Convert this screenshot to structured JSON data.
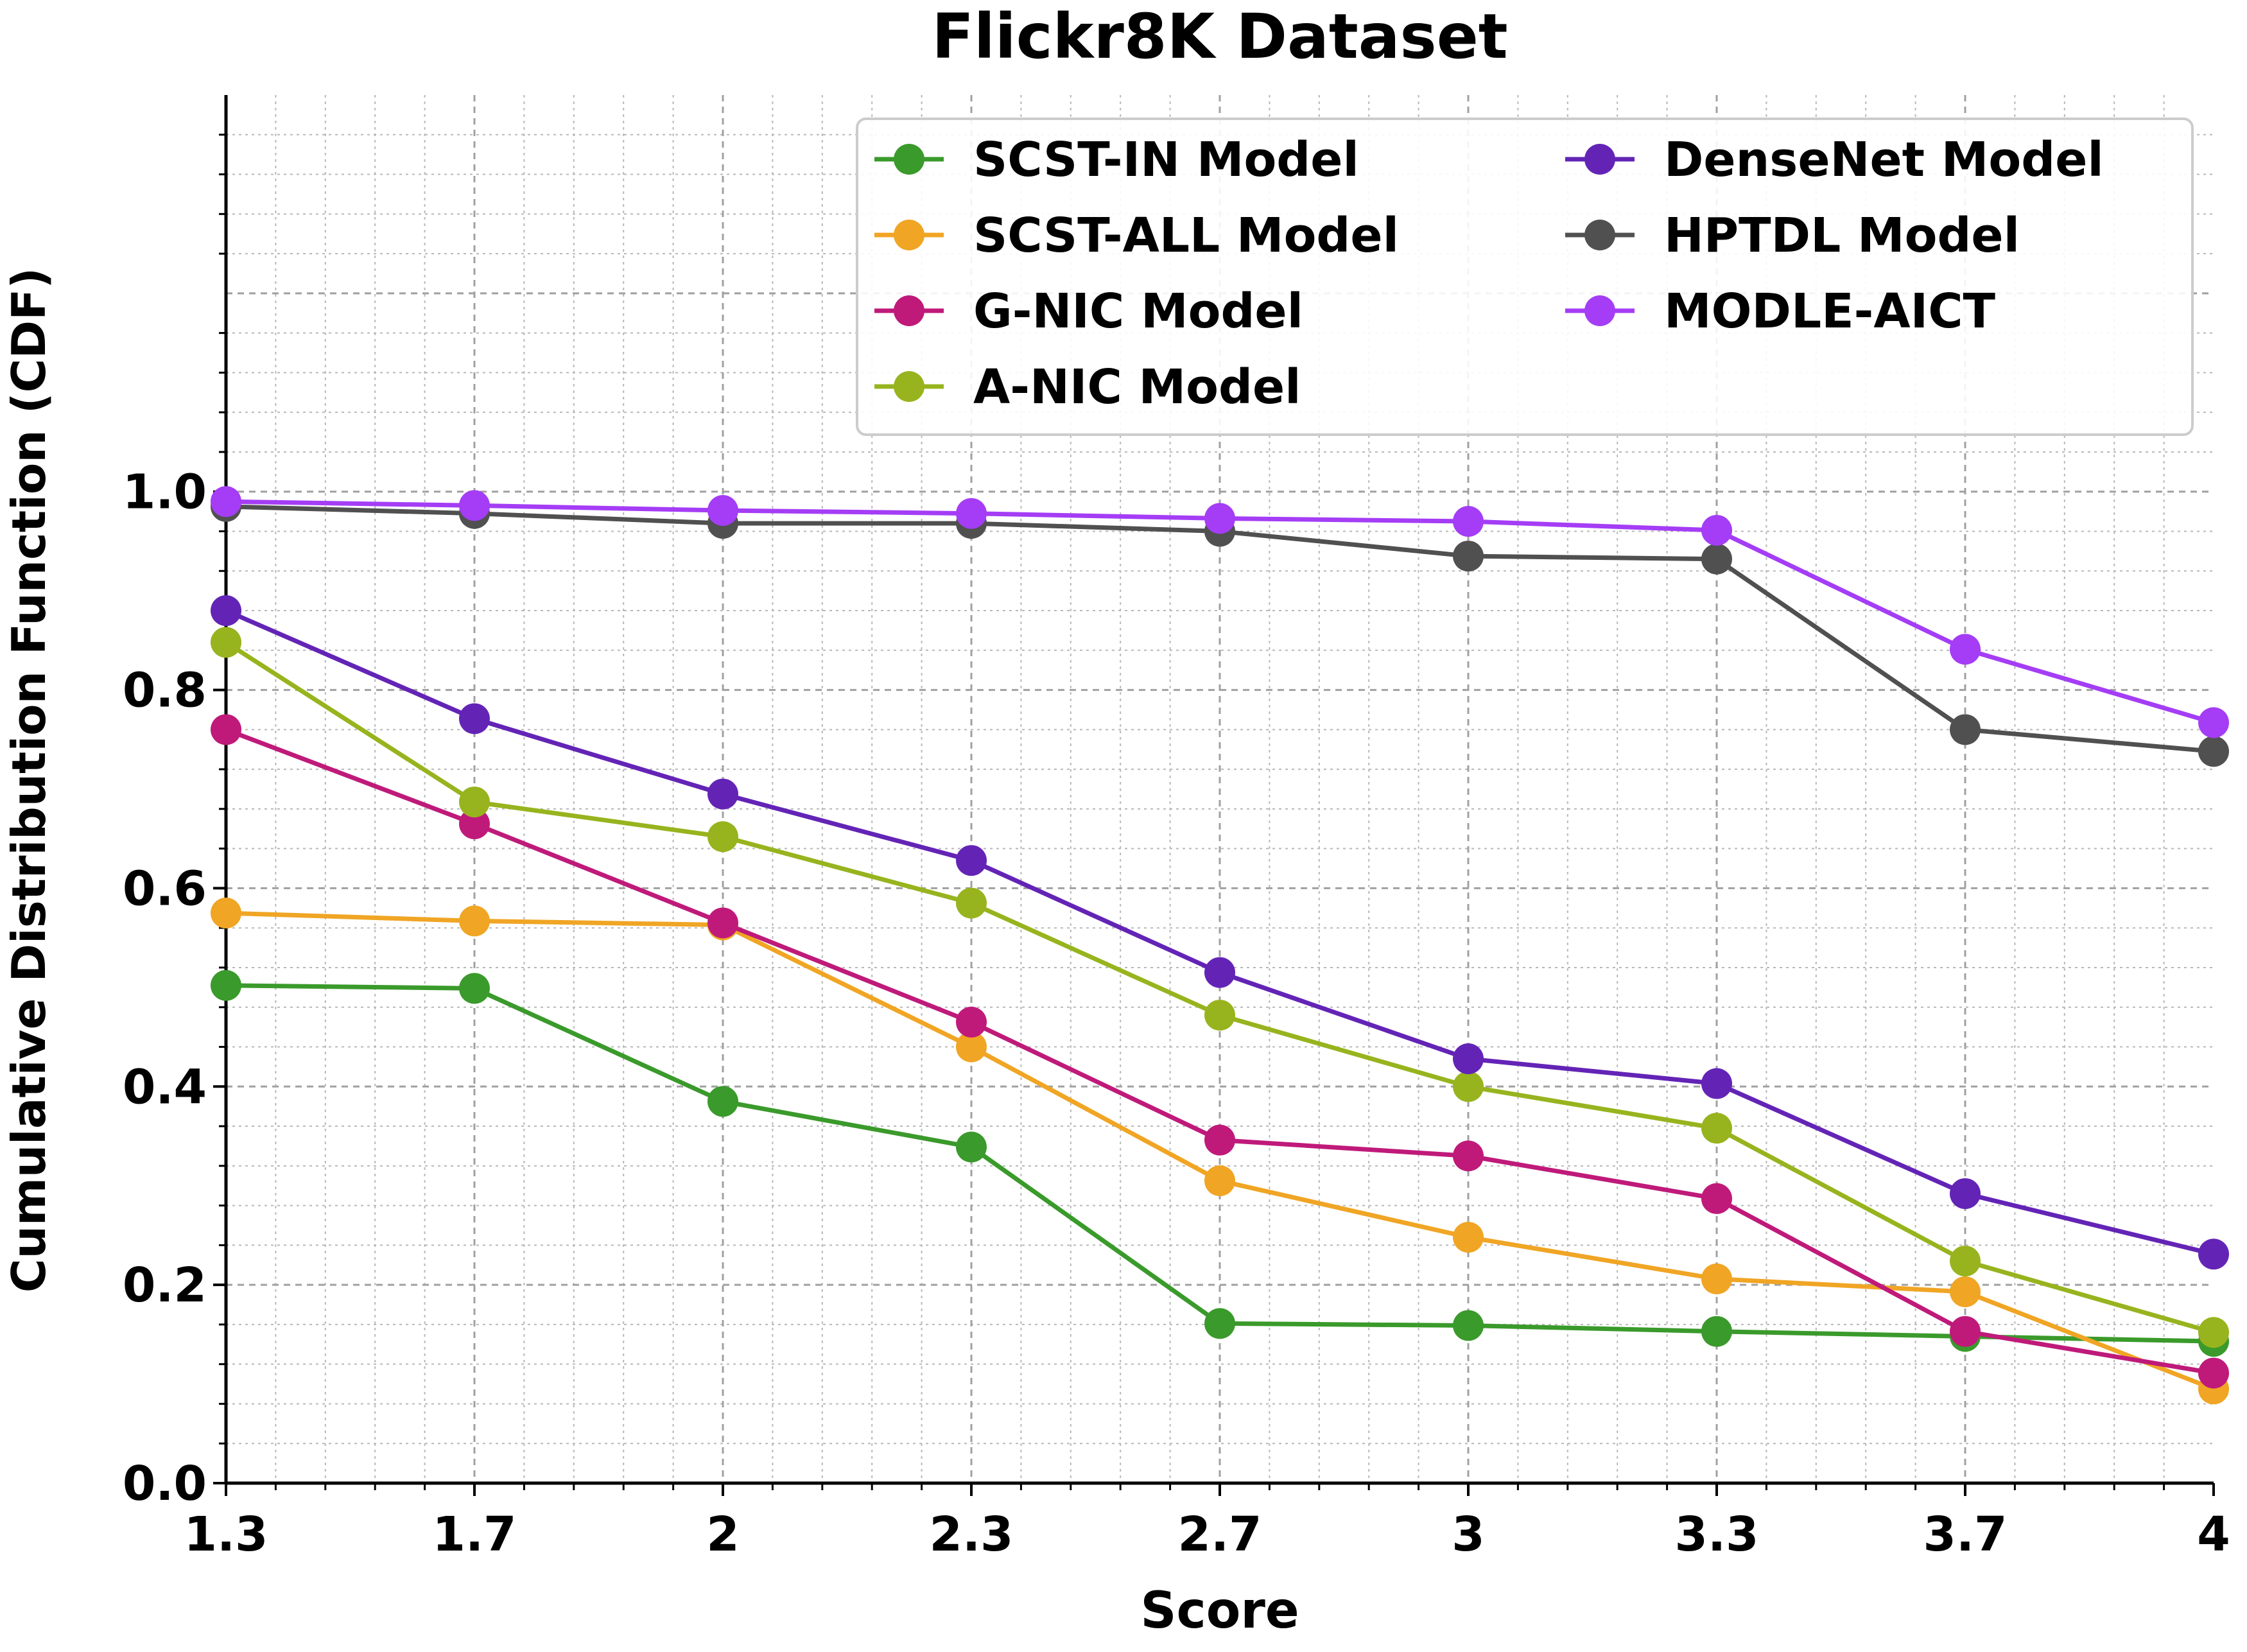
{
  "chart_data": {
    "type": "line",
    "title": "Flickr8K Dataset",
    "xlabel": "Score",
    "ylabel": "Cumulative Distribution Function (CDF)",
    "categories": [
      "1.3",
      "1.7",
      "2",
      "2.3",
      "2.7",
      "3",
      "3.3",
      "3.7",
      "4"
    ],
    "yticks": [
      "0.0",
      "0.2",
      "0.4",
      "0.6",
      "0.8",
      "1.0"
    ],
    "ylim": [
      0,
      1.4
    ],
    "grid": true,
    "legend_position": "top-right",
    "series": [
      {
        "name": "SCST-IN Model",
        "color": "#3a9a2b",
        "values": [
          0.502,
          0.499,
          0.385,
          0.339,
          0.161,
          0.159,
          0.153,
          0.148,
          0.143
        ]
      },
      {
        "name": "SCST-ALL Model",
        "color": "#f0a524",
        "values": [
          0.575,
          0.567,
          0.563,
          0.44,
          0.305,
          0.248,
          0.206,
          0.193,
          0.095
        ]
      },
      {
        "name": "G-NIC Model",
        "color": "#bf1a7a",
        "values": [
          0.76,
          0.665,
          0.565,
          0.465,
          0.346,
          0.33,
          0.287,
          0.153,
          0.111
        ]
      },
      {
        "name": "A-NIC Model",
        "color": "#97b41e",
        "values": [
          0.848,
          0.687,
          0.652,
          0.585,
          0.472,
          0.4,
          0.358,
          0.224,
          0.152
        ]
      },
      {
        "name": "DenseNet Model",
        "color": "#6324b6",
        "values": [
          0.88,
          0.771,
          0.695,
          0.628,
          0.515,
          0.428,
          0.403,
          0.292,
          0.231
        ]
      },
      {
        "name": "HPTDL Model",
        "color": "#505050",
        "values": [
          0.985,
          0.978,
          0.968,
          0.968,
          0.96,
          0.935,
          0.932,
          0.76,
          0.738
        ]
      },
      {
        "name": "MODLE-AICT",
        "color": "#a43df5",
        "values": [
          0.99,
          0.986,
          0.981,
          0.978,
          0.973,
          0.97,
          0.961,
          0.841,
          0.767
        ]
      }
    ]
  }
}
